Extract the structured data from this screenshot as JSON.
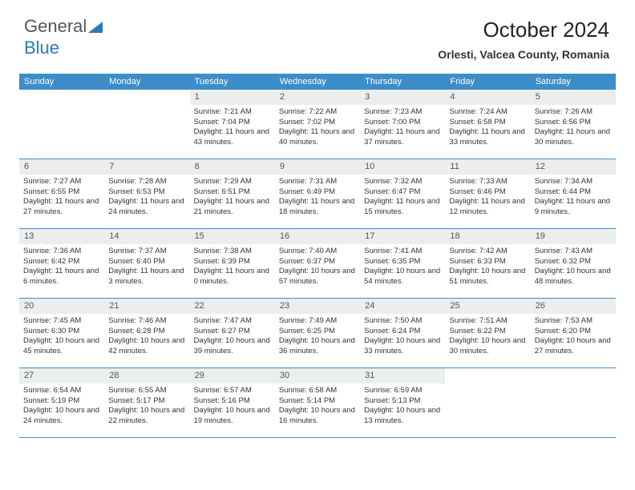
{
  "logo": {
    "part1": "General",
    "part2": "Blue"
  },
  "title": "October 2024",
  "location": "Orlesti, Valcea County, Romania",
  "header_bg": "#3d8dc9",
  "daynum_bg": "#eceded",
  "weekdays": [
    "Sunday",
    "Monday",
    "Tuesday",
    "Wednesday",
    "Thursday",
    "Friday",
    "Saturday"
  ],
  "weeks": [
    [
      null,
      null,
      {
        "n": "1",
        "r": "7:21 AM",
        "s": "7:04 PM",
        "d": "11 hours and 43 minutes."
      },
      {
        "n": "2",
        "r": "7:22 AM",
        "s": "7:02 PM",
        "d": "11 hours and 40 minutes."
      },
      {
        "n": "3",
        "r": "7:23 AM",
        "s": "7:00 PM",
        "d": "11 hours and 37 minutes."
      },
      {
        "n": "4",
        "r": "7:24 AM",
        "s": "6:58 PM",
        "d": "11 hours and 33 minutes."
      },
      {
        "n": "5",
        "r": "7:26 AM",
        "s": "6:56 PM",
        "d": "11 hours and 30 minutes."
      }
    ],
    [
      {
        "n": "6",
        "r": "7:27 AM",
        "s": "6:55 PM",
        "d": "11 hours and 27 minutes."
      },
      {
        "n": "7",
        "r": "7:28 AM",
        "s": "6:53 PM",
        "d": "11 hours and 24 minutes."
      },
      {
        "n": "8",
        "r": "7:29 AM",
        "s": "6:51 PM",
        "d": "11 hours and 21 minutes."
      },
      {
        "n": "9",
        "r": "7:31 AM",
        "s": "6:49 PM",
        "d": "11 hours and 18 minutes."
      },
      {
        "n": "10",
        "r": "7:32 AM",
        "s": "6:47 PM",
        "d": "11 hours and 15 minutes."
      },
      {
        "n": "11",
        "r": "7:33 AM",
        "s": "6:46 PM",
        "d": "11 hours and 12 minutes."
      },
      {
        "n": "12",
        "r": "7:34 AM",
        "s": "6:44 PM",
        "d": "11 hours and 9 minutes."
      }
    ],
    [
      {
        "n": "13",
        "r": "7:36 AM",
        "s": "6:42 PM",
        "d": "11 hours and 6 minutes."
      },
      {
        "n": "14",
        "r": "7:37 AM",
        "s": "6:40 PM",
        "d": "11 hours and 3 minutes."
      },
      {
        "n": "15",
        "r": "7:38 AM",
        "s": "6:39 PM",
        "d": "11 hours and 0 minutes."
      },
      {
        "n": "16",
        "r": "7:40 AM",
        "s": "6:37 PM",
        "d": "10 hours and 57 minutes."
      },
      {
        "n": "17",
        "r": "7:41 AM",
        "s": "6:35 PM",
        "d": "10 hours and 54 minutes."
      },
      {
        "n": "18",
        "r": "7:42 AM",
        "s": "6:33 PM",
        "d": "10 hours and 51 minutes."
      },
      {
        "n": "19",
        "r": "7:43 AM",
        "s": "6:32 PM",
        "d": "10 hours and 48 minutes."
      }
    ],
    [
      {
        "n": "20",
        "r": "7:45 AM",
        "s": "6:30 PM",
        "d": "10 hours and 45 minutes."
      },
      {
        "n": "21",
        "r": "7:46 AM",
        "s": "6:28 PM",
        "d": "10 hours and 42 minutes."
      },
      {
        "n": "22",
        "r": "7:47 AM",
        "s": "6:27 PM",
        "d": "10 hours and 39 minutes."
      },
      {
        "n": "23",
        "r": "7:49 AM",
        "s": "6:25 PM",
        "d": "10 hours and 36 minutes."
      },
      {
        "n": "24",
        "r": "7:50 AM",
        "s": "6:24 PM",
        "d": "10 hours and 33 minutes."
      },
      {
        "n": "25",
        "r": "7:51 AM",
        "s": "6:22 PM",
        "d": "10 hours and 30 minutes."
      },
      {
        "n": "26",
        "r": "7:53 AM",
        "s": "6:20 PM",
        "d": "10 hours and 27 minutes."
      }
    ],
    [
      {
        "n": "27",
        "r": "6:54 AM",
        "s": "5:19 PM",
        "d": "10 hours and 24 minutes."
      },
      {
        "n": "28",
        "r": "6:55 AM",
        "s": "5:17 PM",
        "d": "10 hours and 22 minutes."
      },
      {
        "n": "29",
        "r": "6:57 AM",
        "s": "5:16 PM",
        "d": "10 hours and 19 minutes."
      },
      {
        "n": "30",
        "r": "6:58 AM",
        "s": "5:14 PM",
        "d": "10 hours and 16 minutes."
      },
      {
        "n": "31",
        "r": "6:59 AM",
        "s": "5:13 PM",
        "d": "10 hours and 13 minutes."
      },
      null,
      null
    ]
  ]
}
